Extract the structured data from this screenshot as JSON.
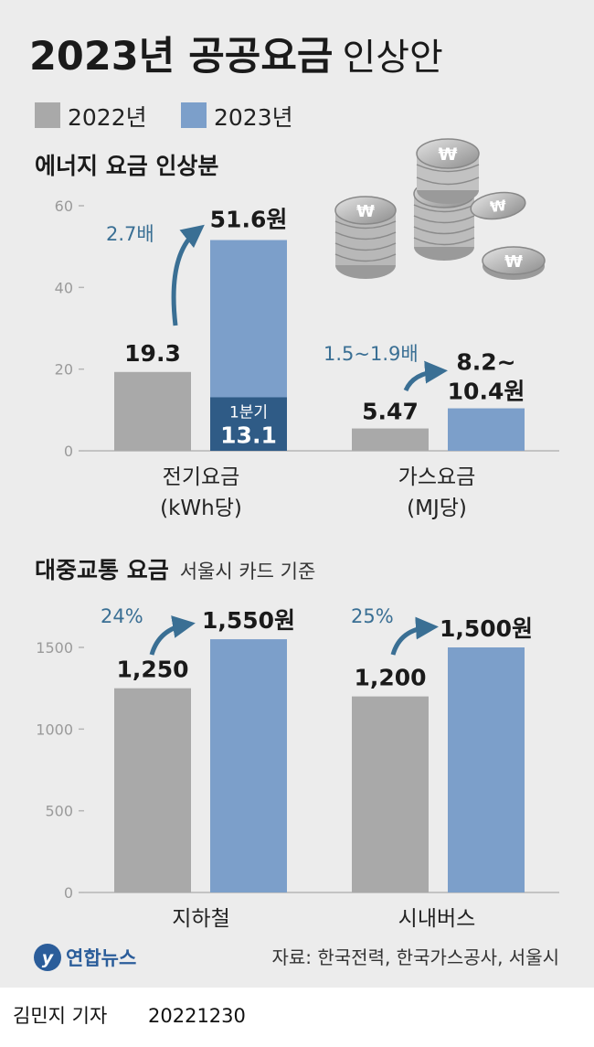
{
  "title": {
    "main": "2023년 공공요금",
    "sub": "인상안"
  },
  "legend": [
    {
      "label": "2022년",
      "color": "#a9a9a9"
    },
    {
      "label": "2023년",
      "color": "#7c9fca"
    }
  ],
  "colors": {
    "y2022": "#a9a9a9",
    "y2023": "#7c9fca",
    "q1": "#2f5b86",
    "arrow": "#3a6f94",
    "axis": "#b5b5b5"
  },
  "icons": [
    "won-coins-icon"
  ],
  "chart_data": [
    {
      "type": "bar",
      "title": "에너지 요금 인상분",
      "ylim": [
        0,
        60
      ],
      "yticks": [
        0,
        20,
        40,
        60
      ],
      "categories": [
        "전기요금\n(kWh당)",
        "가스요금\n(MJ당)"
      ],
      "category_lines": [
        [
          "전기요금",
          "(kWh당)"
        ],
        [
          "가스요금",
          "(MJ당)"
        ]
      ],
      "series": [
        {
          "name": "2022년",
          "values": [
            19.3,
            5.47
          ],
          "labels": [
            "19.3",
            "5.47"
          ]
        },
        {
          "name": "2023년",
          "values": [
            51.6,
            10.4
          ],
          "labels": [
            "51.6원",
            "8.2~\n10.4원"
          ],
          "label_lines": [
            [
              "51.6원"
            ],
            [
              "8.2~",
              "10.4원"
            ]
          ]
        }
      ],
      "inner_bar": {
        "category_index": 0,
        "value": 13.1,
        "label_top": "1분기",
        "label_bottom": "13.1"
      },
      "ratios": [
        "2.7배",
        "1.5~1.9배"
      ],
      "grid": false
    },
    {
      "type": "bar",
      "title": "대중교통 요금",
      "subtitle": "서울시 카드 기준",
      "ylim": [
        0,
        1700
      ],
      "yticks": [
        0,
        500,
        1000,
        1500
      ],
      "categories": [
        "지하철",
        "시내버스"
      ],
      "series": [
        {
          "name": "2022년",
          "values": [
            1250,
            1200
          ],
          "labels": [
            "1,250",
            "1,200"
          ]
        },
        {
          "name": "2023년",
          "values": [
            1550,
            1500
          ],
          "labels": [
            "1,550원",
            "1,500원"
          ]
        }
      ],
      "ratios": [
        "24%",
        "25%"
      ],
      "grid": false
    }
  ],
  "footer": {
    "logo_text": "연합뉴스",
    "source": "자료: 한국전력, 한국가스공사, 서울시"
  },
  "byline": {
    "reporter": "김민지 기자",
    "date": "20221230"
  }
}
